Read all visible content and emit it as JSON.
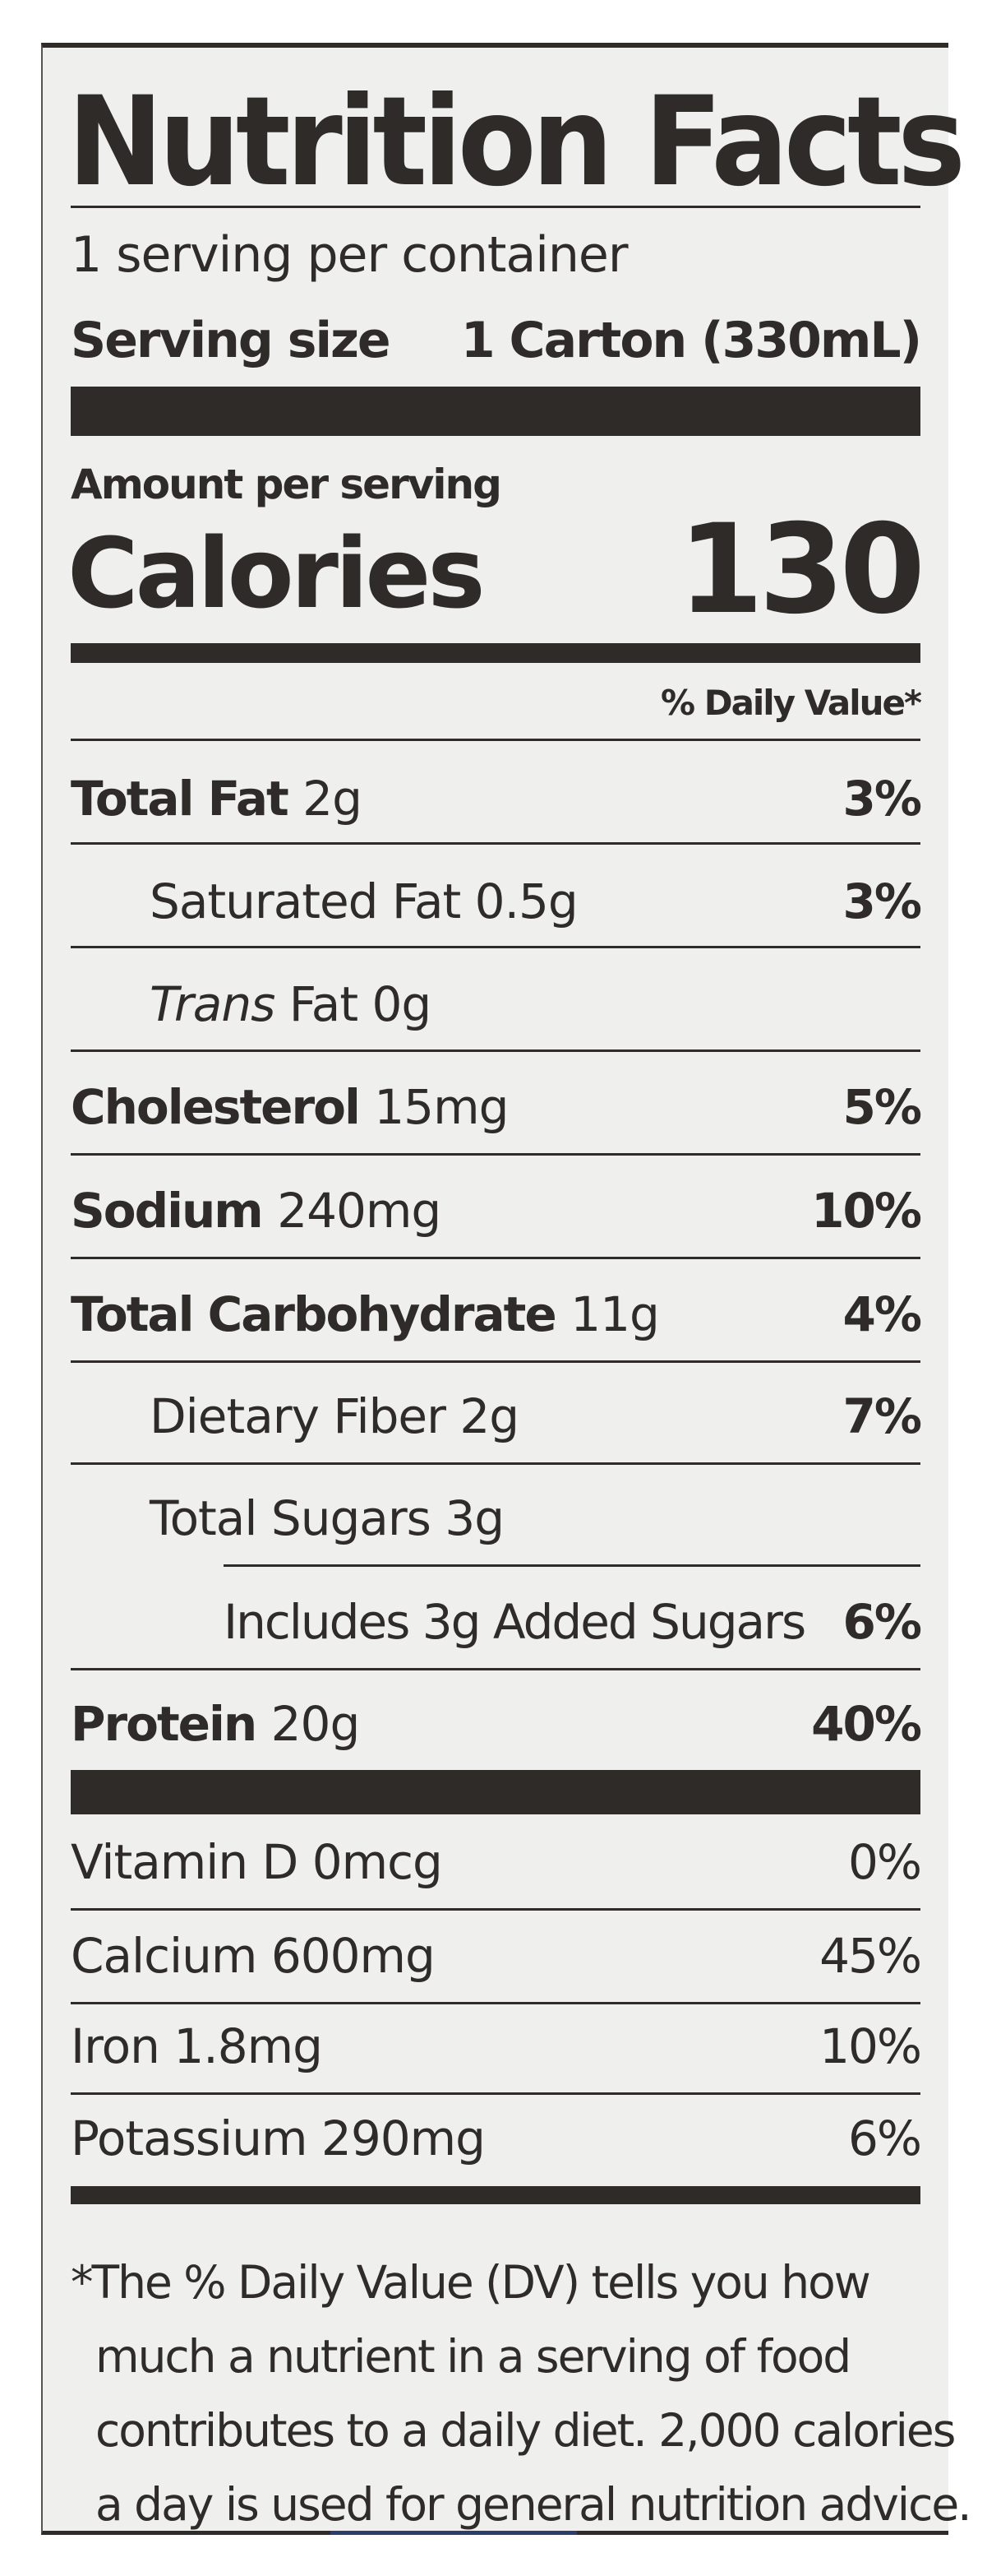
{
  "title": "Nutrition Facts",
  "servings_per_container": "1 serving per container",
  "serving_size_label": "Serving size",
  "serving_size_value": "1 Carton (330mL)",
  "amount_per_serving": "Amount per serving",
  "calories_label": "Calories",
  "calories_value": "130",
  "daily_value_header": "% Daily Value*",
  "nutrients": [
    {
      "name": "Total Fat",
      "amount": "2g",
      "dv": "3%"
    },
    {
      "name": "Saturated Fat 0.5g",
      "amount": "",
      "dv": "3%"
    },
    {
      "name_italic": "Trans",
      "name": " Fat 0g",
      "amount": "",
      "dv": ""
    },
    {
      "name": "Cholesterol",
      "amount": "15mg",
      "dv": "5%"
    },
    {
      "name": "Sodium",
      "amount": "240mg",
      "dv": "10%"
    },
    {
      "name": "Total Carbohydrate",
      "amount": "11g",
      "dv": "4%"
    },
    {
      "name": "Dietary Fiber 2g",
      "amount": "",
      "dv": "7%"
    },
    {
      "name": "Total Sugars 3g",
      "amount": "",
      "dv": ""
    },
    {
      "name": "Includes 3g Added Sugars",
      "amount": "",
      "dv": "6%"
    },
    {
      "name": "Protein",
      "amount": "20g",
      "dv": "40%"
    }
  ],
  "vitamins": [
    {
      "name": "Vitamin D 0mcg",
      "dv": "0%"
    },
    {
      "name": "Calcium 600mg",
      "dv": "45%"
    },
    {
      "name": "Iron 1.8mg",
      "dv": "10%"
    },
    {
      "name": "Potassium 290mg",
      "dv": "6%"
    }
  ],
  "footnote": [
    "*The % Daily Value (DV) tells you how",
    "much a nutrient in a serving of food",
    "contributes to a daily diet. 2,000 calories",
    "a day is used for general nutrition advice."
  ]
}
